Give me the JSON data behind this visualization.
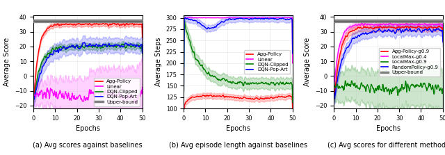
{
  "fig_width": 6.4,
  "fig_height": 2.23,
  "dpi": 100,
  "subplot_captions": [
    "(a) Avg scores against baselines",
    "(b) Avg episode length against baselines",
    "(c) Avg scores for different methods"
  ],
  "plot1": {
    "ylabel": "Average Score",
    "xlabel": "Epochs",
    "xlim": [
      0,
      50
    ],
    "ylim": [
      -20,
      40
    ],
    "yticks": [
      -20,
      -10,
      0,
      10,
      20,
      30,
      40
    ],
    "upper_bound_y": 37.5,
    "upper_bound_lo": 36.5,
    "upper_bound_hi": 38.5
  },
  "plot2": {
    "ylabel": "Average Steps",
    "xlabel": "Epochs",
    "xlim": [
      0,
      50
    ],
    "ylim": [
      100,
      300
    ],
    "yticks": [
      100,
      125,
      150,
      175,
      200,
      225,
      250,
      275,
      300
    ]
  },
  "plot3": {
    "ylabel": "Average Score",
    "xlabel": "Epochs",
    "xlim": [
      0,
      50
    ],
    "ylim": [
      -20,
      40
    ],
    "yticks": [
      -20,
      -10,
      0,
      10,
      20,
      30,
      40
    ],
    "upper_bound_y": 37.5,
    "upper_bound_lo": 36.5,
    "upper_bound_hi": 38.5
  },
  "colors": {
    "red": "#FF0000",
    "magenta": "#FF00FF",
    "green": "#008000",
    "blue": "#0000FF",
    "gray": "#808080",
    "gray_dark": "#555555"
  },
  "legend_fontsize": 5,
  "axis_fontsize": 7,
  "tick_fontsize": 6,
  "caption_fontsize": 7
}
